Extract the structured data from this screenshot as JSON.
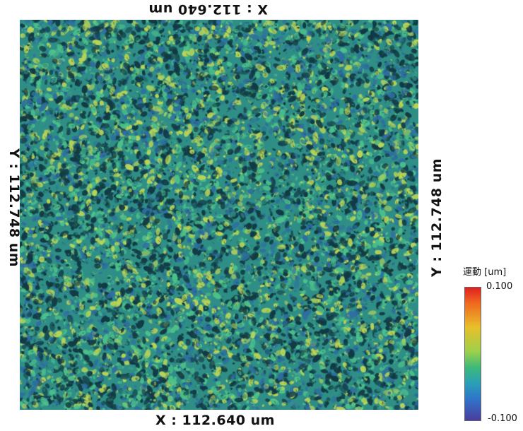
{
  "axes": {
    "top_label": "X : 112.640 um",
    "bottom_label": "X : 112.640 um",
    "left_label": "Y : 112.748 um",
    "right_label": "Y : 112.748 um"
  },
  "legend": {
    "title": "運動 [um]",
    "max": "0.100",
    "min": "-0.100"
  },
  "colors": {
    "surface_base": "#2f8f86",
    "surface_dark": "#123a44",
    "surface_light": "#4cc08a",
    "surface_blue": "#2e6fa0",
    "surface_yellow": "#b8d458"
  }
}
